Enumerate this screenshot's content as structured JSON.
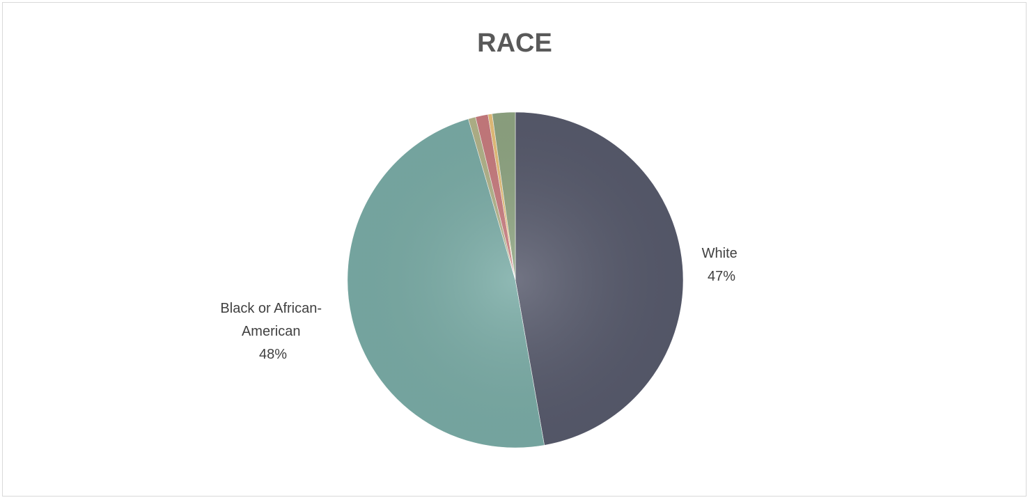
{
  "chart_data": {
    "type": "pie",
    "title": "RACE",
    "series": [
      {
        "name": "",
        "slices": [
          {
            "label": "White",
            "value": 47,
            "percent_label": "47%",
            "color": "#575a6c",
            "show_label": true
          },
          {
            "label": "Black or African-American",
            "value": 48,
            "percent_label": "48%",
            "color": "#7aaca6",
            "show_label": true
          },
          {
            "label": "",
            "value": 0.7,
            "percent_label": "",
            "color": "#b3b48a",
            "show_label": false
          },
          {
            "label": "",
            "value": 1.2,
            "percent_label": "",
            "color": "#c87b7e",
            "show_label": false
          },
          {
            "label": "",
            "value": 0.4,
            "percent_label": "",
            "color": "#e8c07a",
            "show_label": false
          },
          {
            "label": "",
            "value": 2.2,
            "percent_label": "",
            "color": "#8fa582",
            "show_label": false
          }
        ]
      }
    ],
    "labels": {
      "white_lines": [
        "White",
        "47%"
      ],
      "black_lines": [
        "Black or African-",
        "American",
        "48%"
      ]
    },
    "legend": "none"
  }
}
